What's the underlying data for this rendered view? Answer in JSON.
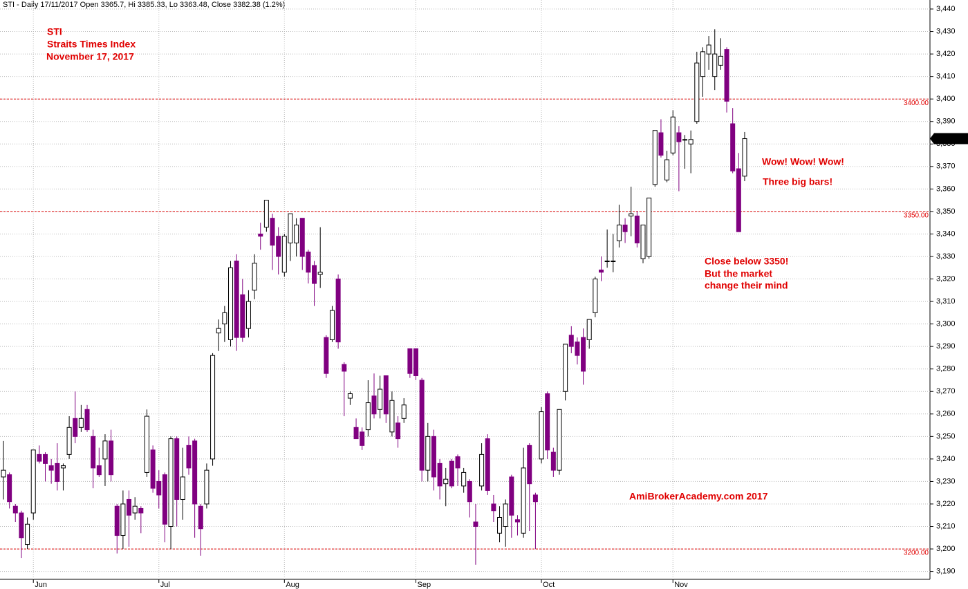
{
  "chart_data": {
    "type": "candlestick",
    "header": "STI - Daily 17/11/2017 Open 3365.7, Hi 3385.33, Lo 3363.48, Close 3382.38 (1.2%)",
    "annotations": [
      "STI",
      "Straits Times Index",
      "November 17, 2017",
      "Wow! Wow! Wow!",
      "Three big bars!",
      "Close below 3350!",
      "But the market",
      "change their mind",
      "AmiBrokerAcademy.com  2017"
    ],
    "categories": [
      null,
      null,
      null,
      null,
      null,
      "Jun",
      null,
      null,
      null,
      null,
      null,
      null,
      null,
      null,
      null,
      null,
      null,
      null,
      null,
      null,
      null,
      null,
      null,
      null,
      null,
      null,
      "Jul",
      null,
      null,
      null,
      null,
      null,
      null,
      null,
      null,
      null,
      null,
      null,
      null,
      null,
      null,
      null,
      null,
      null,
      null,
      null,
      null,
      "Aug",
      null,
      null,
      null,
      null,
      null,
      null,
      null,
      null,
      null,
      null,
      null,
      null,
      null,
      null,
      null,
      null,
      null,
      null,
      null,
      null,
      null,
      "Sep",
      null,
      null,
      null,
      null,
      null,
      null,
      null,
      null,
      null,
      null,
      null,
      null,
      null,
      null,
      null,
      null,
      null,
      null,
      null,
      null,
      "Oct",
      null,
      null,
      null,
      null,
      null,
      null,
      null,
      null,
      null,
      null,
      null,
      null,
      null,
      null,
      null,
      null,
      null,
      null,
      null,
      null,
      null,
      "Nov",
      null,
      null,
      null,
      null,
      null,
      null,
      null,
      null,
      null,
      null,
      null,
      null
    ],
    "open": [
      3232,
      3233,
      3219,
      3216,
      3202,
      3216,
      3242,
      3242,
      3237,
      3238,
      3236,
      3242,
      3258,
      3254,
      3262,
      3250,
      3237,
      3240,
      3248,
      3219,
      3206,
      3222,
      3216,
      3218,
      3234,
      3244,
      3230,
      3233,
      3210,
      3249,
      3222,
      3246,
      3248,
      3219,
      3220,
      3240,
      3296,
      3300,
      3293,
      3328,
      3313,
      3298,
      3315,
      3340,
      3343,
      3347,
      3339,
      3323,
      3336,
      3336,
      3347,
      3332,
      3326,
      3322,
      3294,
      3293,
      3320,
      3282,
      3267,
      3254,
      3252,
      3253,
      3268,
      3262,
      3277,
      3252,
      3256,
      3258,
      3289,
      3289,
      3275,
      3235,
      3250,
      3238,
      3229,
      3239,
      3241,
      3228,
      3230,
      3212,
      3228,
      3249,
      3220,
      3207,
      3210,
      3232,
      3213,
      3207,
      3246,
      3224,
      3240,
      3269,
      3243,
      3235,
      3270,
      3295,
      3292,
      3294,
      3293,
      3305,
      3324,
      3328,
      3328,
      3337,
      3344,
      3348,
      3348,
      3329,
      3330,
      3362,
      3385,
      3364,
      3376,
      3385,
      3382,
      3380,
      3390,
      3410,
      3420,
      3410,
      3415,
      3422,
      3389,
      3369,
      3365.7
    ],
    "high": [
      3248,
      3234,
      3220,
      3217,
      3214,
      3244,
      3246,
      3243,
      3240,
      3247,
      3238,
      3259,
      3270,
      3264,
      3264,
      3253,
      3245,
      3251,
      3253,
      3220,
      3226,
      3226,
      3223,
      3219,
      3262,
      3246,
      3235,
      3234,
      3250,
      3250,
      3245,
      3250,
      3249,
      3220,
      3238,
      3287,
      3302,
      3308,
      3328,
      3331,
      3320,
      3315,
      3331,
      3345,
      3355,
      3349,
      3343,
      3340,
      3349,
      3347,
      3347,
      3333,
      3328,
      3343,
      3295,
      3308,
      3322,
      3283,
      3270,
      3258,
      3254,
      3275,
      3278,
      3277,
      3277,
      3270,
      3259,
      3267,
      3289,
      3289,
      3276,
      3256,
      3253,
      3240,
      3236,
      3240,
      3242,
      3236,
      3231,
      3220,
      3247,
      3251,
      3224,
      3219,
      3222,
      3233,
      3215,
      3245,
      3247,
      3225,
      3263,
      3270,
      3245,
      3262,
      3291,
      3299,
      3294,
      3298,
      3302,
      3321,
      3330,
      3342,
      3340,
      3353,
      3347,
      3361,
      3350,
      3344,
      3356,
      3386,
      3391,
      3377,
      3395,
      3388,
      3384,
      3386,
      3421,
      3423,
      3428,
      3431,
      3427,
      3423,
      3396,
      3376,
      3385.33
    ],
    "low": [
      3222,
      3218,
      3212,
      3196,
      3200,
      3213,
      3238,
      3230,
      3229,
      3226,
      3226,
      3240,
      3247,
      3252,
      3252,
      3227,
      3232,
      3228,
      3230,
      3198,
      3200,
      3201,
      3213,
      3207,
      3232,
      3225,
      3218,
      3203,
      3200,
      3210,
      3213,
      3233,
      3205,
      3197,
      3218,
      3237,
      3288,
      3292,
      3290,
      3288,
      3292,
      3294,
      3311,
      3333,
      3341,
      3324,
      3322,
      3321,
      3328,
      3330,
      3324,
      3318,
      3308,
      3316,
      3276,
      3292,
      3289,
      3259,
      3264,
      3249,
      3244,
      3250,
      3258,
      3258,
      3256,
      3250,
      3245,
      3256,
      3276,
      3275,
      3230,
      3230,
      3226,
      3222,
      3219,
      3227,
      3228,
      3225,
      3214,
      3193,
      3226,
      3224,
      3212,
      3203,
      3201,
      3205,
      3206,
      3205,
      3208,
      3200,
      3238,
      3240,
      3232,
      3233,
      3266,
      3287,
      3282,
      3273,
      3289,
      3303,
      3319,
      3325,
      3323,
      3334,
      3336,
      3339,
      3334,
      3327,
      3329,
      3361,
      3374,
      3363,
      3375,
      3359,
      3369,
      3367,
      3389,
      3401,
      3413,
      3404,
      3413,
      3394,
      3367,
      3341,
      3363.48
    ],
    "close": [
      3235,
      3221,
      3216,
      3205,
      3211,
      3244,
      3239,
      3238,
      3235,
      3230,
      3237,
      3254,
      3250,
      3258,
      3253,
      3236,
      3233,
      3248,
      3233,
      3206,
      3220,
      3215,
      3219,
      3216,
      3259,
      3227,
      3224,
      3211,
      3249,
      3222,
      3232,
      3236,
      3220,
      3209,
      3235,
      3286,
      3298,
      3305,
      3325,
      3294,
      3294,
      3310,
      3327,
      3339,
      3355,
      3335,
      3330,
      3339,
      3349,
      3344,
      3330,
      3323,
      3318,
      3323,
      3278,
      3306,
      3292,
      3279,
      3269,
      3249,
      3246,
      3265,
      3260,
      3271,
      3260,
      3266,
      3249,
      3264,
      3278,
      3277,
      3235,
      3250,
      3232,
      3228,
      3231,
      3228,
      3236,
      3234,
      3221,
      3210,
      3242,
      3226,
      3217,
      3214,
      3220,
      3215,
      3212,
      3236,
      3229,
      3221,
      3261,
      3244,
      3235,
      3262,
      3291,
      3290,
      3286,
      3279,
      3302,
      3320,
      3323,
      3328,
      3328,
      3344,
      3341,
      3349,
      3336,
      3344,
      3356,
      3386,
      3375,
      3373,
      3392,
      3381,
      3382,
      3382,
      3416,
      3421,
      3424,
      3420,
      3419,
      3399,
      3368,
      3341,
      3382.38
    ],
    "up_color": "#ffffff",
    "down_color": "#800080",
    "ylim": [
      3186.5,
      3444
    ],
    "yticks": [
      {
        "value": 3190,
        "label": "3,190"
      },
      {
        "value": 3200,
        "label": "3,200"
      },
      {
        "value": 3210,
        "label": "3,210"
      },
      {
        "value": 3220,
        "label": "3,220"
      },
      {
        "value": 3230,
        "label": "3,230"
      },
      {
        "value": 3240,
        "label": "3,240"
      },
      {
        "value": 3250,
        "label": "3,250"
      },
      {
        "value": 3260,
        "label": "3,260"
      },
      {
        "value": 3270,
        "label": "3,270"
      },
      {
        "value": 3280,
        "label": "3,280"
      },
      {
        "value": 3290,
        "label": "3,290"
      },
      {
        "value": 3300,
        "label": "3,300"
      },
      {
        "value": 3310,
        "label": "3,310"
      },
      {
        "value": 3320,
        "label": "3,320"
      },
      {
        "value": 3330,
        "label": "3,330"
      },
      {
        "value": 3340,
        "label": "3,340"
      },
      {
        "value": 3350,
        "label": "3,350"
      },
      {
        "value": 3360,
        "label": "3,360"
      },
      {
        "value": 3370,
        "label": "3,370"
      },
      {
        "value": 3380,
        "label": "3,380"
      },
      {
        "value": 3390,
        "label": "3,390"
      },
      {
        "value": 3400,
        "label": "3,400"
      },
      {
        "value": 3410,
        "label": "3,410"
      },
      {
        "value": 3420,
        "label": "3,420"
      },
      {
        "value": 3430,
        "label": "3,430"
      },
      {
        "value": 3440,
        "label": "3,440"
      }
    ],
    "levels": [
      {
        "value": 3200,
        "label": "3200.00"
      },
      {
        "value": 3350,
        "label": "3350.00"
      },
      {
        "value": 3400,
        "label": "3400.00"
      }
    ],
    "level_color": "#e00000",
    "last_price": {
      "value": 3382.38,
      "label": "3,382.38"
    },
    "grid": true
  }
}
